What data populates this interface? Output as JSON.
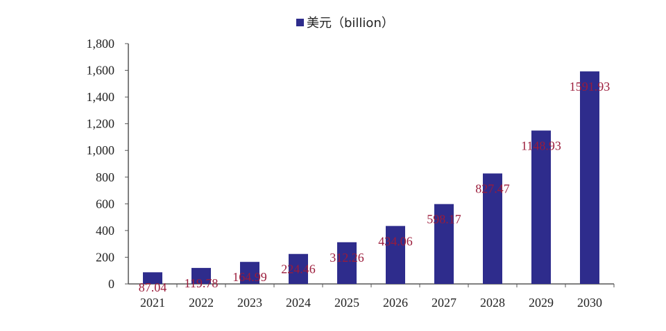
{
  "chart_data": {
    "type": "bar",
    "categories": [
      "2021",
      "2022",
      "2023",
      "2024",
      "2025",
      "2026",
      "2027",
      "2028",
      "2029",
      "2030"
    ],
    "series": [
      {
        "name": "美元（billion）",
        "values": [
          87.04,
          119.78,
          164.99,
          224.46,
          312.26,
          434.06,
          598.17,
          827.47,
          1148.93,
          1591.93
        ],
        "labels": [
          "87.04",
          "119.78",
          "164.99",
          "224.46",
          "312.26",
          "434.06",
          "598.17",
          "827.47",
          "1148.93",
          "1591.93"
        ]
      }
    ],
    "legend_text": "美元（billion）",
    "legend_position": "top-center",
    "ylim": [
      0,
      1800
    ],
    "yticks": [
      0,
      200,
      400,
      600,
      800,
      1000,
      1200,
      1400,
      1600,
      1800
    ],
    "ytick_labels": [
      "0",
      "200",
      "400",
      "600",
      "800",
      "1,000",
      "1,200",
      "1,400",
      "1,600",
      "1,800"
    ],
    "grid": false,
    "colors": {
      "bar": "#2e2c8c",
      "label": "#9b1b3a",
      "axis": "#555555"
    }
  }
}
